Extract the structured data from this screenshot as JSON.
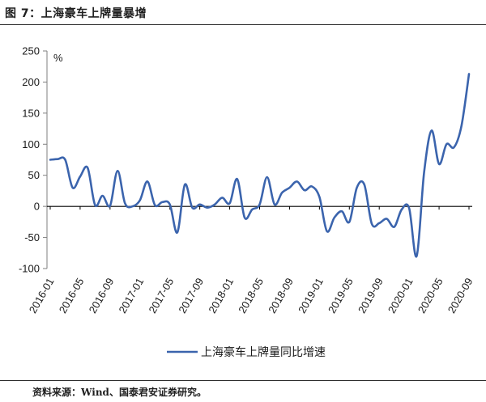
{
  "header": {
    "title": "图 7：上海豪车上牌量暴增"
  },
  "footer": {
    "source": "资料来源：Wind、国泰君安证券研究。"
  },
  "chart_data": {
    "type": "line",
    "unit_label": "%",
    "ylim": [
      -100,
      250
    ],
    "yticks": [
      -100,
      -50,
      0,
      50,
      100,
      150,
      200,
      250
    ],
    "xtick_labels": [
      "2016-01",
      "2016-05",
      "2016-09",
      "2017-01",
      "2017-05",
      "2017-09",
      "2018-01",
      "2018-05",
      "2018-09",
      "2019-01",
      "2019-05",
      "2019-09",
      "2020-01",
      "2020-05",
      "2020-09"
    ],
    "legend": "上海豪车上牌量同比增速",
    "legend_position": "bottom",
    "grid": false,
    "color": "#3b64ad",
    "x": [
      "2016-01",
      "2016-02",
      "2016-03",
      "2016-04",
      "2016-05",
      "2016-06",
      "2016-07",
      "2016-08",
      "2016-09",
      "2016-10",
      "2016-11",
      "2016-12",
      "2017-01",
      "2017-02",
      "2017-03",
      "2017-04",
      "2017-05",
      "2017-06",
      "2017-07",
      "2017-08",
      "2017-09",
      "2017-10",
      "2017-11",
      "2017-12",
      "2018-01",
      "2018-02",
      "2018-03",
      "2018-04",
      "2018-05",
      "2018-06",
      "2018-07",
      "2018-08",
      "2018-09",
      "2018-10",
      "2018-11",
      "2018-12",
      "2019-01",
      "2019-02",
      "2019-03",
      "2019-04",
      "2019-05",
      "2019-06",
      "2019-07",
      "2019-08",
      "2019-09",
      "2019-10",
      "2019-11",
      "2019-12",
      "2020-01",
      "2020-02",
      "2020-03",
      "2020-04",
      "2020-05",
      "2020-06",
      "2020-07",
      "2020-08",
      "2020-09"
    ],
    "values": [
      75,
      76,
      75,
      30,
      48,
      62,
      2,
      17,
      1,
      57,
      5,
      0,
      10,
      40,
      2,
      7,
      3,
      -42,
      35,
      -2,
      3,
      -2,
      3,
      14,
      5,
      44,
      -18,
      -5,
      3,
      47,
      3,
      22,
      30,
      40,
      26,
      32,
      15,
      -40,
      -18,
      -8,
      -25,
      30,
      35,
      -28,
      -27,
      -20,
      -33,
      -5,
      -3,
      -80,
      55,
      122,
      68,
      100,
      95,
      130,
      213
    ]
  }
}
